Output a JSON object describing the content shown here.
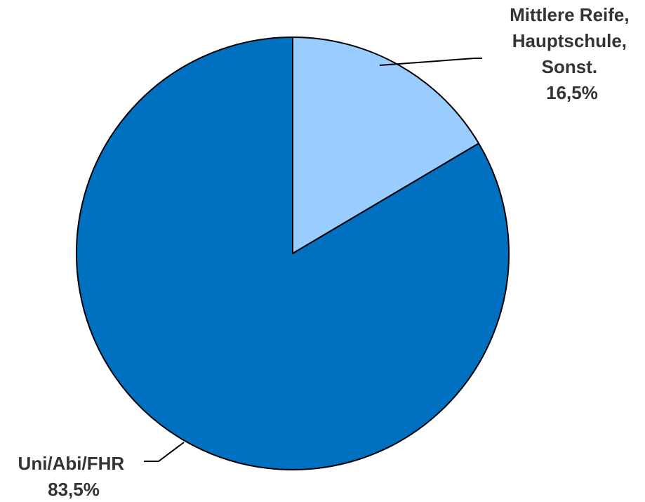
{
  "chart_data": {
    "type": "pie",
    "slices": [
      {
        "label_lines": [
          "Mittlere Reife,",
          "Hauptschule,",
          "Sonst."
        ],
        "value_label": "16,5%",
        "value": 16.5,
        "color": "#99CCFF"
      },
      {
        "label_lines": [
          "Uni/Abi/FHR"
        ],
        "value_label": "83,5%",
        "value": 83.5,
        "color": "#0070C0"
      }
    ],
    "start_angle": "12 o'clock",
    "direction": "clockwise",
    "legend": "none"
  }
}
